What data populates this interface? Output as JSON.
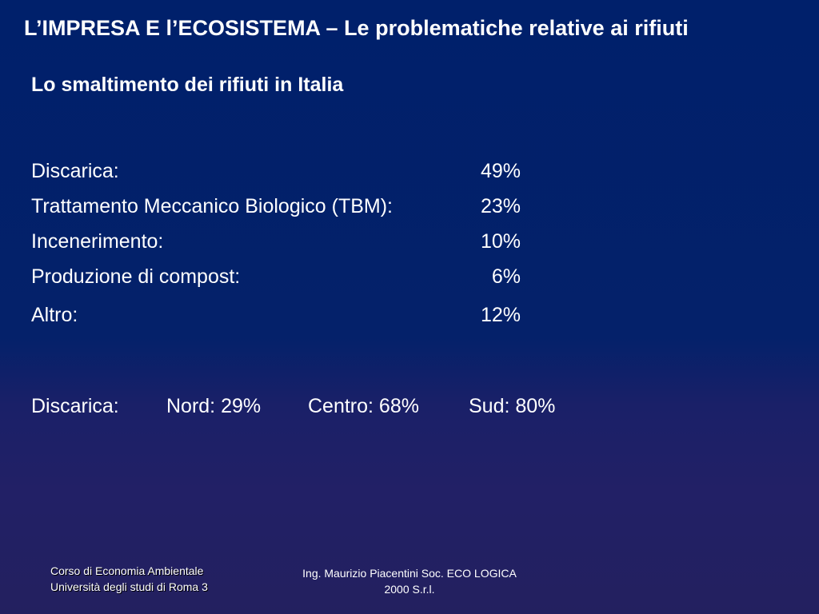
{
  "header": {
    "title": "L’IMPRESA E l’ECOSISTEMA – Le problematiche relative ai rifiuti"
  },
  "subtitle": "Lo smaltimento dei rifiuti in Italia",
  "stats": [
    {
      "label": "Discarica:",
      "value": "49%"
    },
    {
      "label": "Trattamento Meccanico Biologico (TBM):",
      "value": "23%"
    },
    {
      "label": "Incenerimento:",
      "value": "10%"
    },
    {
      "label": "Produzione di compost:",
      "value": "6%"
    },
    {
      "label": "Altro:",
      "value": "12%"
    }
  ],
  "regional": {
    "label": "Discarica:",
    "nord": "Nord: 29%",
    "centro": "Centro: 68%",
    "sud": "Sud: 80%"
  },
  "footer": {
    "course_line1": "Corso di Economia Ambientale",
    "course_line2": "Università degli studi di Roma 3",
    "author_line1": "Ing. Maurizio Piacentini Soc. ECO LOGICA",
    "author_line2": "2000 S.r.l."
  }
}
